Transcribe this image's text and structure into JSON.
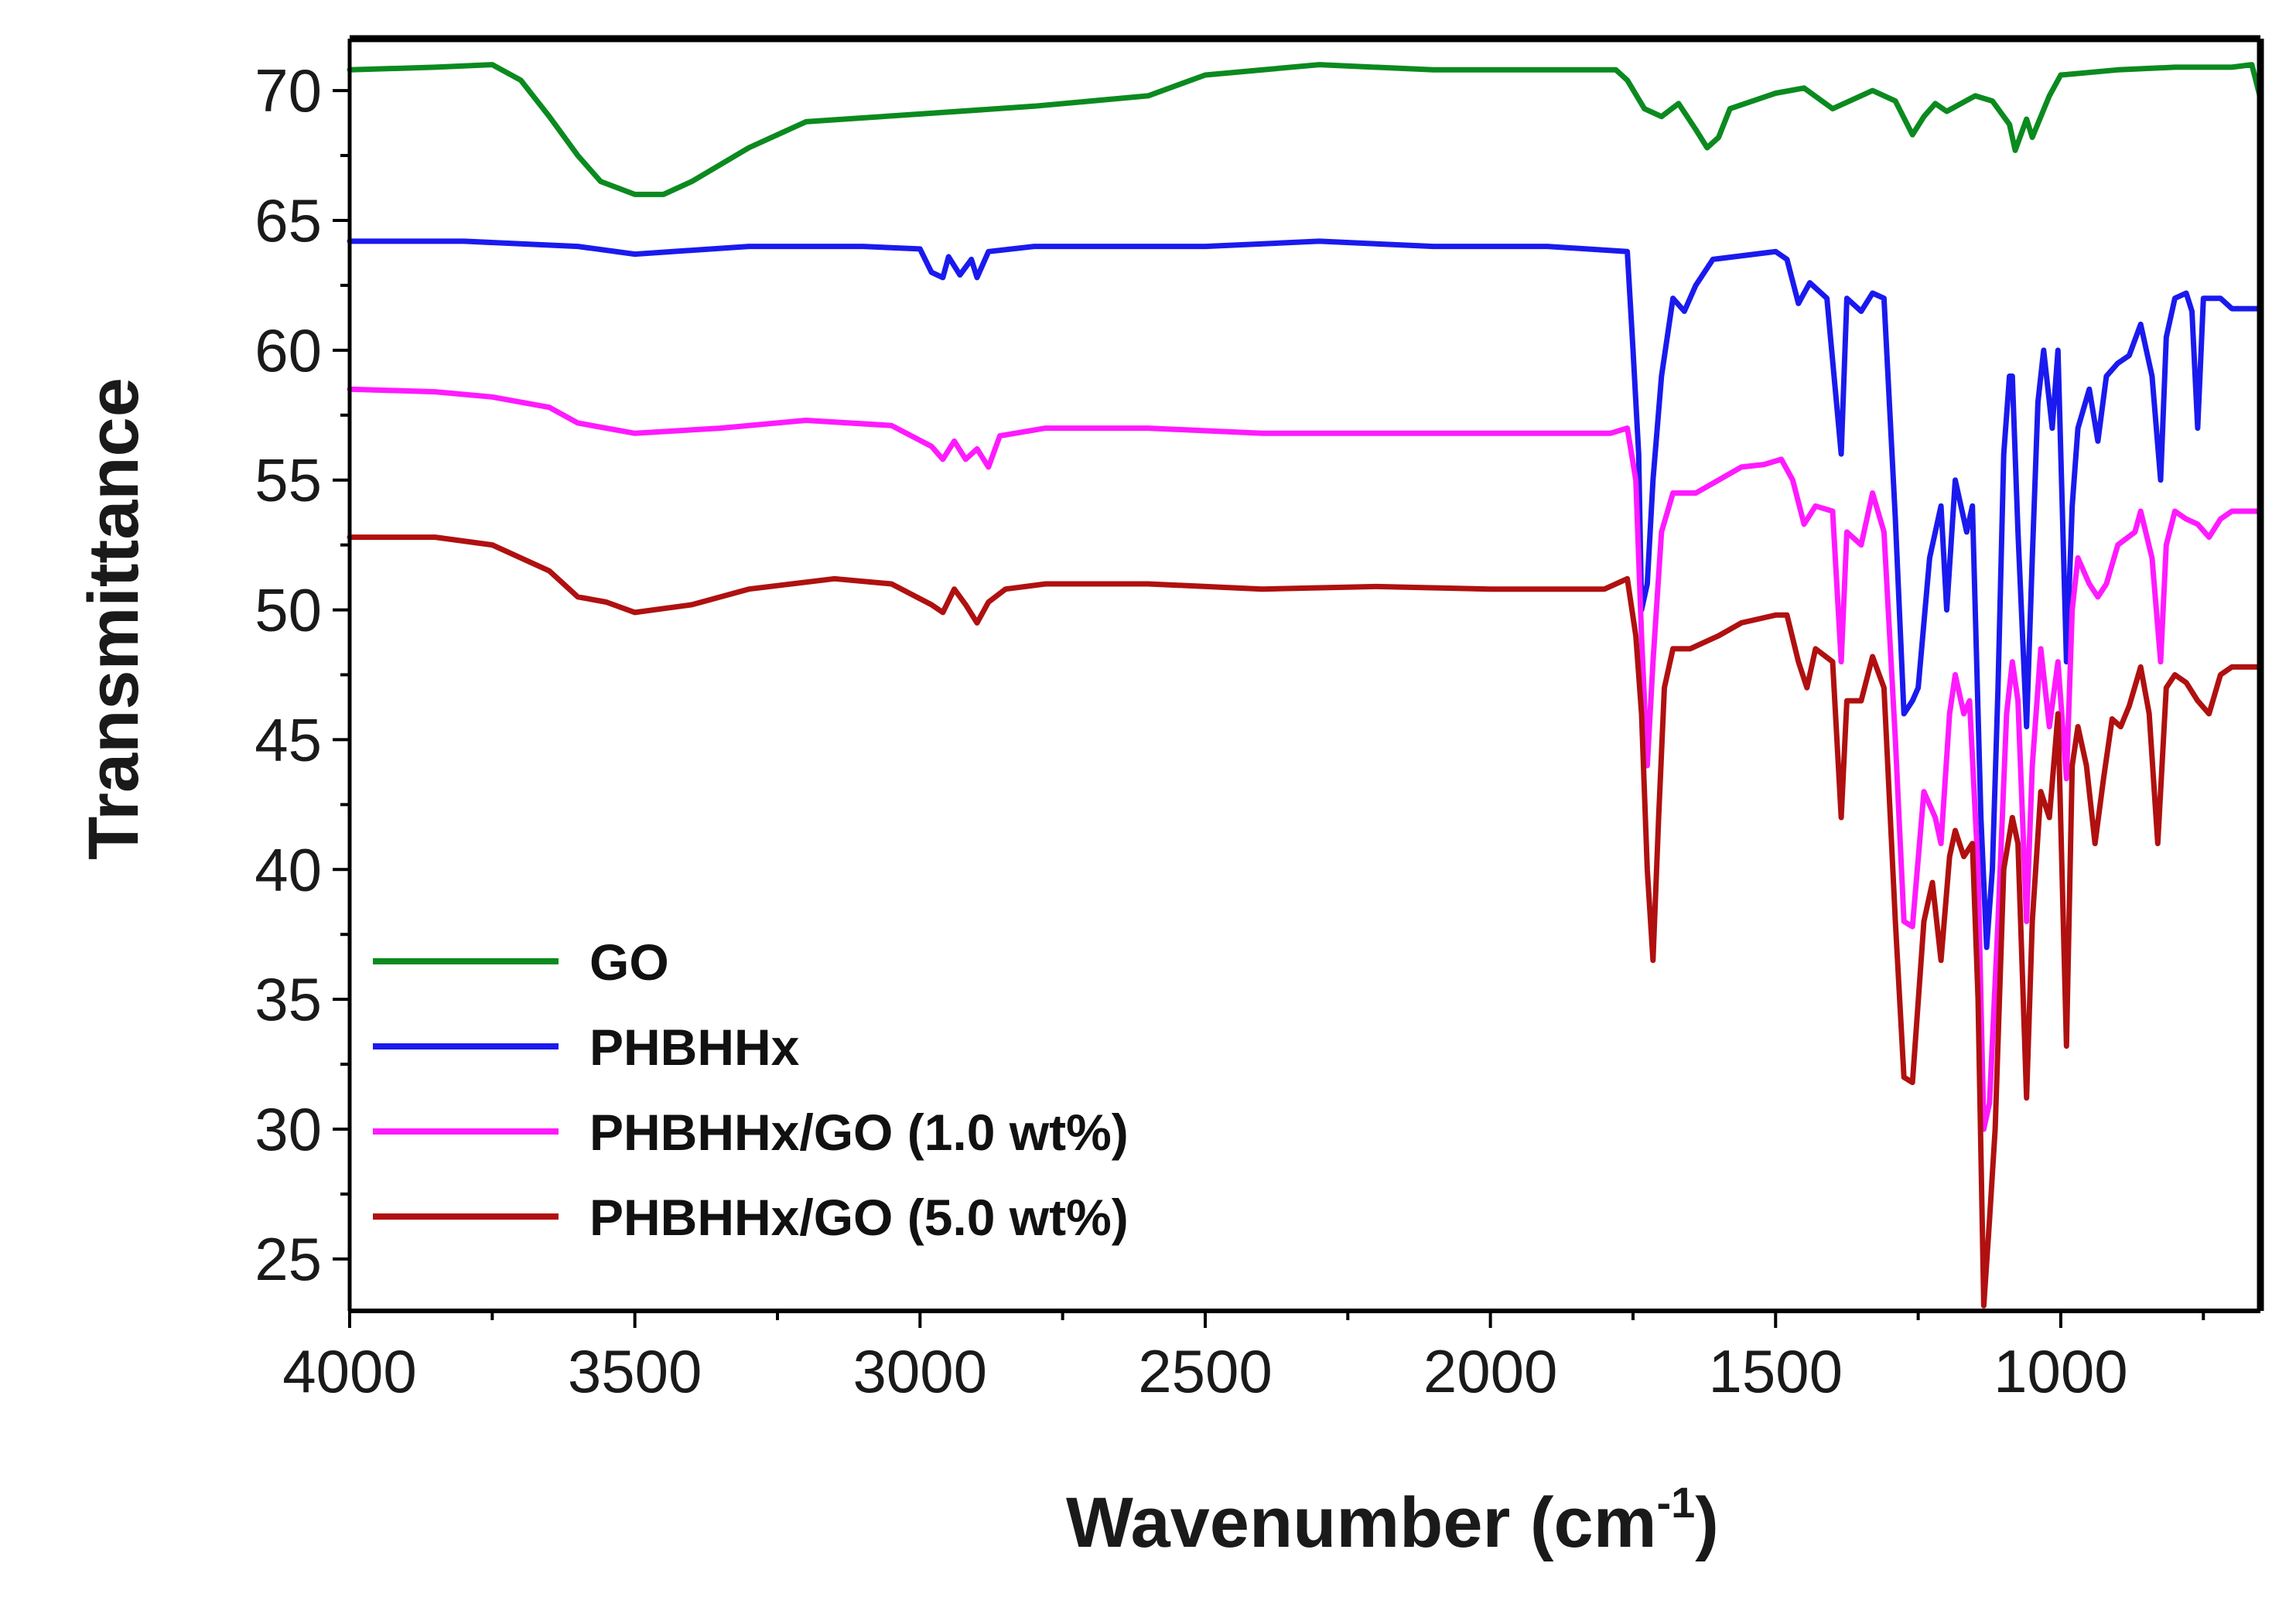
{
  "chart_data": {
    "type": "line",
    "title": "",
    "xlabel": "Wavenumber (cm",
    "xlabel_superscript": "-1",
    "xlabel_suffix": ")",
    "ylabel": "Transmittance",
    "xlim": [
      4000,
      650
    ],
    "ylim": [
      23,
      72
    ],
    "x_ticks": [
      4000,
      3500,
      3000,
      2500,
      2000,
      1500,
      1000
    ],
    "x_tick_labels": [
      "4000",
      "3500",
      "3000",
      "2500",
      "2000",
      "1500",
      "1000"
    ],
    "y_ticks": [
      25,
      30,
      35,
      40,
      45,
      50,
      55,
      60,
      65,
      70
    ],
    "y_tick_labels": [
      "25",
      "30",
      "35",
      "40",
      "45",
      "50",
      "55",
      "60",
      "65",
      "70"
    ],
    "grid": false,
    "legend_position": "bottom-left",
    "series": [
      {
        "name": "GO",
        "color": "#0b8a1f",
        "points": [
          [
            4000,
            70.8
          ],
          [
            3850,
            70.9
          ],
          [
            3750,
            71.0
          ],
          [
            3700,
            70.4
          ],
          [
            3650,
            69.0
          ],
          [
            3600,
            67.5
          ],
          [
            3560,
            66.5
          ],
          [
            3500,
            66.0
          ],
          [
            3450,
            66.0
          ],
          [
            3400,
            66.5
          ],
          [
            3300,
            67.8
          ],
          [
            3200,
            68.8
          ],
          [
            3000,
            69.1
          ],
          [
            2800,
            69.4
          ],
          [
            2600,
            69.8
          ],
          [
            2500,
            70.6
          ],
          [
            2300,
            71.0
          ],
          [
            2100,
            70.8
          ],
          [
            1900,
            70.8
          ],
          [
            1780,
            70.8
          ],
          [
            1760,
            70.4
          ],
          [
            1730,
            69.3
          ],
          [
            1700,
            69.0
          ],
          [
            1670,
            69.5
          ],
          [
            1640,
            68.5
          ],
          [
            1620,
            67.8
          ],
          [
            1600,
            68.2
          ],
          [
            1580,
            69.3
          ],
          [
            1500,
            69.9
          ],
          [
            1450,
            70.1
          ],
          [
            1400,
            69.3
          ],
          [
            1330,
            70.0
          ],
          [
            1290,
            69.6
          ],
          [
            1260,
            68.3
          ],
          [
            1240,
            69.0
          ],
          [
            1220,
            69.5
          ],
          [
            1200,
            69.2
          ],
          [
            1150,
            69.8
          ],
          [
            1120,
            69.6
          ],
          [
            1090,
            68.7
          ],
          [
            1080,
            67.7
          ],
          [
            1060,
            68.9
          ],
          [
            1050,
            68.2
          ],
          [
            1020,
            69.8
          ],
          [
            1000,
            70.6
          ],
          [
            900,
            70.8
          ],
          [
            800,
            70.9
          ],
          [
            700,
            70.9
          ],
          [
            665,
            71.0
          ],
          [
            650,
            69.7
          ]
        ]
      },
      {
        "name": "PHBHHx",
        "color": "#1a1aee",
        "points": [
          [
            4000,
            64.2
          ],
          [
            3800,
            64.2
          ],
          [
            3600,
            64.0
          ],
          [
            3500,
            63.7
          ],
          [
            3300,
            64.0
          ],
          [
            3100,
            64.0
          ],
          [
            3000,
            63.9
          ],
          [
            2980,
            63.0
          ],
          [
            2960,
            62.8
          ],
          [
            2950,
            63.6
          ],
          [
            2930,
            62.9
          ],
          [
            2910,
            63.5
          ],
          [
            2900,
            62.8
          ],
          [
            2880,
            63.8
          ],
          [
            2800,
            64.0
          ],
          [
            2500,
            64.0
          ],
          [
            2300,
            64.2
          ],
          [
            2100,
            64.0
          ],
          [
            1900,
            64.0
          ],
          [
            1760,
            63.8
          ],
          [
            1750,
            60.0
          ],
          [
            1740,
            56.0
          ],
          [
            1735,
            50.0
          ],
          [
            1725,
            51.0
          ],
          [
            1715,
            55.0
          ],
          [
            1700,
            59.0
          ],
          [
            1680,
            62.0
          ],
          [
            1660,
            61.5
          ],
          [
            1640,
            62.5
          ],
          [
            1610,
            63.5
          ],
          [
            1500,
            63.8
          ],
          [
            1480,
            63.5
          ],
          [
            1460,
            61.8
          ],
          [
            1440,
            62.6
          ],
          [
            1410,
            62.0
          ],
          [
            1385,
            56.0
          ],
          [
            1375,
            62.0
          ],
          [
            1350,
            61.5
          ],
          [
            1330,
            62.2
          ],
          [
            1310,
            62.0
          ],
          [
            1290,
            53.5
          ],
          [
            1275,
            46.0
          ],
          [
            1260,
            46.5
          ],
          [
            1250,
            47.0
          ],
          [
            1230,
            52.0
          ],
          [
            1210,
            54.0
          ],
          [
            1200,
            50.0
          ],
          [
            1185,
            55.0
          ],
          [
            1165,
            53.0
          ],
          [
            1155,
            54.0
          ],
          [
            1140,
            42.0
          ],
          [
            1130,
            37.0
          ],
          [
            1120,
            40.0
          ],
          [
            1110,
            47.0
          ],
          [
            1100,
            56.0
          ],
          [
            1090,
            59.0
          ],
          [
            1085,
            59.0
          ],
          [
            1075,
            53.0
          ],
          [
            1060,
            45.5
          ],
          [
            1050,
            52.0
          ],
          [
            1040,
            58.0
          ],
          [
            1030,
            60.0
          ],
          [
            1015,
            57.0
          ],
          [
            1005,
            60.0
          ],
          [
            990,
            48.0
          ],
          [
            980,
            54.0
          ],
          [
            970,
            57.0
          ],
          [
            950,
            58.5
          ],
          [
            935,
            56.5
          ],
          [
            920,
            59.0
          ],
          [
            900,
            59.5
          ],
          [
            880,
            59.8
          ],
          [
            860,
            61.0
          ],
          [
            840,
            59.0
          ],
          [
            825,
            55.0
          ],
          [
            815,
            60.5
          ],
          [
            800,
            62.0
          ],
          [
            780,
            62.2
          ],
          [
            770,
            61.5
          ],
          [
            760,
            57.0
          ],
          [
            750,
            62.0
          ],
          [
            720,
            62.0
          ],
          [
            700,
            61.6
          ],
          [
            650,
            61.6
          ]
        ]
      },
      {
        "name": "PHBHHx/GO (1.0 wt%)",
        "color": "#ff1aff",
        "points": [
          [
            4000,
            58.5
          ],
          [
            3850,
            58.4
          ],
          [
            3750,
            58.2
          ],
          [
            3650,
            57.8
          ],
          [
            3600,
            57.2
          ],
          [
            3500,
            56.8
          ],
          [
            3350,
            57.0
          ],
          [
            3200,
            57.3
          ],
          [
            3050,
            57.1
          ],
          [
            2980,
            56.3
          ],
          [
            2960,
            55.8
          ],
          [
            2940,
            56.5
          ],
          [
            2920,
            55.8
          ],
          [
            2900,
            56.2
          ],
          [
            2880,
            55.5
          ],
          [
            2860,
            56.7
          ],
          [
            2780,
            57.0
          ],
          [
            2600,
            57.0
          ],
          [
            2400,
            56.8
          ],
          [
            2200,
            56.8
          ],
          [
            1900,
            56.8
          ],
          [
            1790,
            56.8
          ],
          [
            1760,
            57.0
          ],
          [
            1745,
            55.0
          ],
          [
            1735,
            49.0
          ],
          [
            1725,
            44.0
          ],
          [
            1715,
            48.0
          ],
          [
            1700,
            53.0
          ],
          [
            1680,
            54.5
          ],
          [
            1640,
            54.5
          ],
          [
            1600,
            55.0
          ],
          [
            1560,
            55.5
          ],
          [
            1520,
            55.6
          ],
          [
            1490,
            55.8
          ],
          [
            1470,
            55.0
          ],
          [
            1450,
            53.3
          ],
          [
            1430,
            54.0
          ],
          [
            1400,
            53.8
          ],
          [
            1385,
            48.0
          ],
          [
            1375,
            53.0
          ],
          [
            1350,
            52.5
          ],
          [
            1330,
            54.5
          ],
          [
            1310,
            53.0
          ],
          [
            1290,
            45.0
          ],
          [
            1275,
            38.0
          ],
          [
            1260,
            37.8
          ],
          [
            1240,
            43.0
          ],
          [
            1220,
            42.0
          ],
          [
            1210,
            41.0
          ],
          [
            1195,
            46.0
          ],
          [
            1185,
            47.5
          ],
          [
            1170,
            46.0
          ],
          [
            1160,
            46.5
          ],
          [
            1145,
            40.0
          ],
          [
            1135,
            30.0
          ],
          [
            1125,
            31.0
          ],
          [
            1110,
            38.0
          ],
          [
            1095,
            46.0
          ],
          [
            1085,
            48.0
          ],
          [
            1075,
            46.5
          ],
          [
            1060,
            38.0
          ],
          [
            1050,
            44.0
          ],
          [
            1035,
            48.5
          ],
          [
            1020,
            45.5
          ],
          [
            1005,
            48.0
          ],
          [
            990,
            43.5
          ],
          [
            980,
            50.0
          ],
          [
            970,
            52.0
          ],
          [
            950,
            51.0
          ],
          [
            935,
            50.5
          ],
          [
            920,
            51.0
          ],
          [
            900,
            52.5
          ],
          [
            870,
            53.0
          ],
          [
            860,
            53.8
          ],
          [
            840,
            52.0
          ],
          [
            825,
            48.0
          ],
          [
            815,
            52.5
          ],
          [
            800,
            53.8
          ],
          [
            780,
            53.5
          ],
          [
            760,
            53.3
          ],
          [
            740,
            52.8
          ],
          [
            720,
            53.5
          ],
          [
            700,
            53.8
          ],
          [
            650,
            53.8
          ]
        ]
      },
      {
        "name": "PHBHHx/GO (5.0 wt%)",
        "color": "#b01010",
        "points": [
          [
            4000,
            52.8
          ],
          [
            3850,
            52.8
          ],
          [
            3750,
            52.5
          ],
          [
            3680,
            51.8
          ],
          [
            3650,
            51.5
          ],
          [
            3600,
            50.5
          ],
          [
            3550,
            50.3
          ],
          [
            3500,
            49.9
          ],
          [
            3400,
            50.2
          ],
          [
            3300,
            50.8
          ],
          [
            3150,
            51.2
          ],
          [
            3050,
            51.0
          ],
          [
            2980,
            50.2
          ],
          [
            2960,
            49.9
          ],
          [
            2940,
            50.8
          ],
          [
            2920,
            50.2
          ],
          [
            2900,
            49.5
          ],
          [
            2880,
            50.3
          ],
          [
            2850,
            50.8
          ],
          [
            2780,
            51.0
          ],
          [
            2600,
            51.0
          ],
          [
            2400,
            50.8
          ],
          [
            2200,
            50.9
          ],
          [
            2000,
            50.8
          ],
          [
            1800,
            50.8
          ],
          [
            1760,
            51.2
          ],
          [
            1745,
            49.0
          ],
          [
            1735,
            46.0
          ],
          [
            1725,
            40.0
          ],
          [
            1715,
            36.5
          ],
          [
            1705,
            42.0
          ],
          [
            1695,
            47.0
          ],
          [
            1680,
            48.5
          ],
          [
            1650,
            48.5
          ],
          [
            1600,
            49.0
          ],
          [
            1560,
            49.5
          ],
          [
            1500,
            49.8
          ],
          [
            1480,
            49.8
          ],
          [
            1460,
            48.0
          ],
          [
            1445,
            47.0
          ],
          [
            1430,
            48.5
          ],
          [
            1400,
            48.0
          ],
          [
            1385,
            42.0
          ],
          [
            1375,
            46.5
          ],
          [
            1350,
            46.5
          ],
          [
            1330,
            48.2
          ],
          [
            1310,
            47.0
          ],
          [
            1290,
            38.0
          ],
          [
            1275,
            32.0
          ],
          [
            1260,
            31.8
          ],
          [
            1240,
            38.0
          ],
          [
            1225,
            39.5
          ],
          [
            1210,
            36.5
          ],
          [
            1195,
            40.5
          ],
          [
            1185,
            41.5
          ],
          [
            1170,
            40.5
          ],
          [
            1155,
            41.0
          ],
          [
            1145,
            35.0
          ],
          [
            1135,
            23.2
          ],
          [
            1125,
            26.5
          ],
          [
            1115,
            30.0
          ],
          [
            1100,
            40.0
          ],
          [
            1085,
            42.0
          ],
          [
            1075,
            41.0
          ],
          [
            1060,
            31.2
          ],
          [
            1050,
            38.0
          ],
          [
            1035,
            43.0
          ],
          [
            1020,
            42.0
          ],
          [
            1005,
            46.0
          ],
          [
            990,
            33.2
          ],
          [
            980,
            44.0
          ],
          [
            970,
            45.5
          ],
          [
            955,
            44.0
          ],
          [
            940,
            41.0
          ],
          [
            925,
            43.5
          ],
          [
            910,
            45.8
          ],
          [
            895,
            45.5
          ],
          [
            880,
            46.3
          ],
          [
            860,
            47.8
          ],
          [
            845,
            46.0
          ],
          [
            830,
            41.0
          ],
          [
            815,
            47.0
          ],
          [
            800,
            47.5
          ],
          [
            780,
            47.2
          ],
          [
            760,
            46.5
          ],
          [
            740,
            46.0
          ],
          [
            720,
            47.5
          ],
          [
            700,
            47.8
          ],
          [
            650,
            47.8
          ]
        ]
      }
    ]
  }
}
